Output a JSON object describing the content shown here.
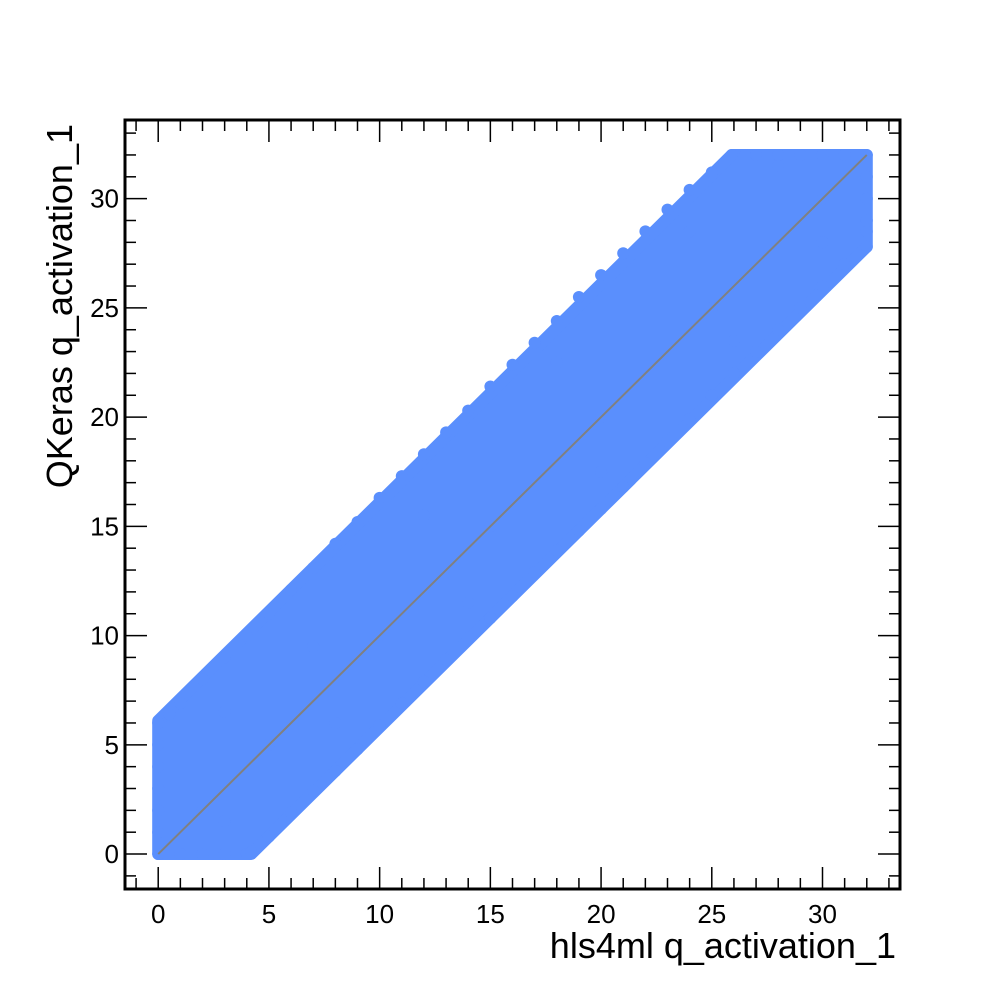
{
  "chart_data": {
    "type": "scatter",
    "title": "",
    "xlabel": "hls4ml q_activation_1",
    "ylabel": "QKeras q_activation_1",
    "xlim": [
      -1.5,
      33.5
    ],
    "ylim": [
      -1.6,
      33.6
    ],
    "x_ticks": [
      0,
      5,
      10,
      15,
      20,
      25,
      30
    ],
    "y_ticks": [
      0,
      5,
      10,
      15,
      20,
      25,
      30
    ],
    "x_tick_labels": [
      "0",
      "5",
      "10",
      "15",
      "20",
      "25",
      "30"
    ],
    "y_tick_labels": [
      "0",
      "5",
      "10",
      "15",
      "20",
      "25",
      "30"
    ],
    "grid": false,
    "legend": "none",
    "series": [
      {
        "color": "#5a8ffd",
        "envelope": [
          [
            0,
            0
          ],
          [
            4.2,
            0
          ],
          [
            32,
            27.8
          ],
          [
            32,
            32
          ],
          [
            25.9,
            32
          ],
          [
            0,
            6.1
          ]
        ],
        "points": [
          [
            0,
            6.0
          ],
          [
            0.5,
            6.4
          ],
          [
            1,
            6.9
          ],
          [
            2,
            8.0
          ],
          [
            3,
            9.0
          ],
          [
            4,
            10.0
          ],
          [
            5,
            11.0
          ],
          [
            6,
            12.1
          ],
          [
            7,
            13.1
          ],
          [
            8,
            14.2
          ],
          [
            9,
            15.2
          ],
          [
            10,
            16.3
          ],
          [
            11,
            17.3
          ],
          [
            12,
            18.3
          ],
          [
            13,
            19.3
          ],
          [
            14,
            20.3
          ],
          [
            15,
            21.4
          ],
          [
            16,
            22.4
          ],
          [
            17,
            23.4
          ],
          [
            18,
            24.4
          ],
          [
            19,
            25.5
          ],
          [
            20,
            26.5
          ],
          [
            21,
            27.5
          ],
          [
            22,
            28.5
          ],
          [
            23,
            29.5
          ],
          [
            24,
            30.4
          ],
          [
            25,
            31.2
          ],
          [
            25.9,
            32
          ],
          [
            26.5,
            32
          ],
          [
            27,
            32
          ],
          [
            28,
            32
          ],
          [
            29,
            32
          ],
          [
            30,
            32
          ],
          [
            31,
            32
          ],
          [
            32,
            32
          ],
          [
            0,
            0
          ],
          [
            1,
            0
          ],
          [
            2,
            0
          ],
          [
            3,
            0
          ],
          [
            4,
            0
          ],
          [
            4.2,
            0.1
          ],
          [
            5,
            0.8
          ],
          [
            6,
            1.9
          ],
          [
            7,
            2.9
          ],
          [
            8,
            3.8
          ],
          [
            9,
            4.8
          ],
          [
            10,
            5.9
          ],
          [
            11,
            6.9
          ],
          [
            12,
            7.9
          ],
          [
            13,
            8.9
          ],
          [
            14,
            9.9
          ],
          [
            15,
            10.8
          ],
          [
            16,
            11.8
          ],
          [
            17,
            12.9
          ],
          [
            18,
            13.9
          ],
          [
            19,
            14.8
          ],
          [
            20,
            15.8
          ],
          [
            21,
            16.8
          ],
          [
            22,
            17.9
          ],
          [
            23,
            18.9
          ],
          [
            24,
            19.9
          ],
          [
            25,
            21.0
          ],
          [
            26,
            22.0
          ],
          [
            27,
            23.0
          ],
          [
            28,
            24.0
          ],
          [
            29,
            25.0
          ],
          [
            30,
            26.0
          ],
          [
            31,
            27.0
          ],
          [
            32,
            27.8
          ],
          [
            0,
            1
          ],
          [
            0,
            2
          ],
          [
            0,
            3
          ],
          [
            0,
            4
          ],
          [
            0,
            5
          ],
          [
            32,
            28.5
          ],
          [
            32,
            29
          ],
          [
            32,
            30
          ],
          [
            32,
            31
          ],
          [
            2,
            2
          ],
          [
            5,
            5
          ],
          [
            10,
            10
          ],
          [
            15,
            15
          ],
          [
            20,
            20
          ],
          [
            25,
            25
          ],
          [
            30,
            30
          ],
          [
            3,
            6.5
          ],
          [
            7,
            9.5
          ],
          [
            12,
            15.5
          ],
          [
            18,
            22.5
          ],
          [
            24,
            28.5
          ],
          [
            28,
            31.5
          ],
          [
            3,
            1.5
          ],
          [
            8,
            6.0
          ],
          [
            14,
            11.5
          ],
          [
            20,
            17.5
          ],
          [
            26,
            23.5
          ],
          [
            30,
            28.0
          ]
        ]
      }
    ],
    "reference_line": {
      "x": [
        0,
        32
      ],
      "y": [
        0,
        32
      ],
      "color": "#808080"
    }
  }
}
